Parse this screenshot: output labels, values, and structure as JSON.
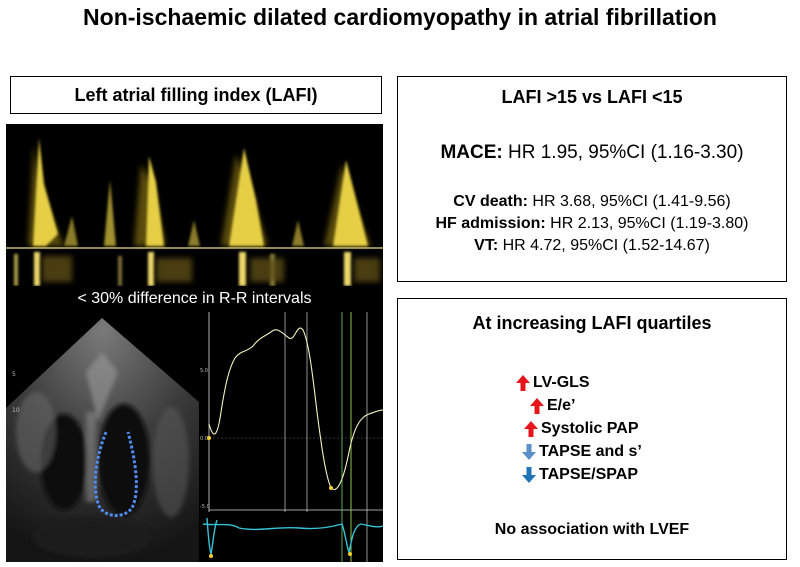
{
  "title": "Non-ischaemic dilated cardiomyopathy in atrial fibrillation",
  "left_panel": {
    "label": "Left atrial filling index (LAFI)",
    "rr_caption": "< 30% difference in R-R intervals"
  },
  "comparison_box": {
    "heading": "LAFI >15 vs LAFI <15",
    "mace": {
      "label": "MACE:",
      "value": "HR 1.95, 95%CI (1.16-3.30)"
    },
    "outcomes": [
      {
        "label": "CV death:",
        "value": "HR 3.68, 95%CI (1.41-9.56)"
      },
      {
        "label": "HF admission:",
        "value": "HR 2.13, 95%CI (1.19-3.80)"
      },
      {
        "label": "VT:",
        "value": "HR 4.72, 95%CI (1.52-14.67)"
      }
    ]
  },
  "quartile_box": {
    "heading": "At increasing LAFI quartiles",
    "items": [
      {
        "text": "LV-GLS",
        "direction": "up",
        "color": "#e8141c"
      },
      {
        "text": "E/e’",
        "direction": "up",
        "color": "#e8141c"
      },
      {
        "text": "Systolic PAP",
        "direction": "up",
        "color": "#e8141c"
      },
      {
        "text": "TAPSE and s’",
        "direction": "down",
        "color": "#5b8fc7"
      },
      {
        "text": "TAPSE/SPAP",
        "direction": "down",
        "color": "#1f73b7"
      }
    ],
    "footer": "No association with LVEF"
  },
  "strain_axis": {
    "ticks": [
      "5.0",
      "0.0",
      "-5.0"
    ]
  },
  "echo_marks": {
    "left": "5",
    "right": "10"
  }
}
